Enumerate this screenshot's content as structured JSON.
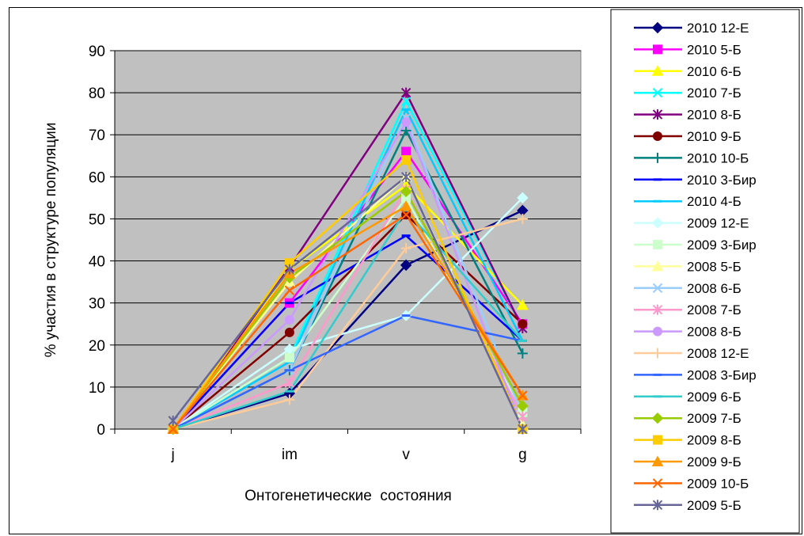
{
  "chart_data": {
    "type": "line",
    "categories": [
      "j",
      "im",
      "v",
      "g"
    ],
    "xlabel": "Онтогенетические  состояния",
    "ylabel": "% участия в структуре популяции",
    "ylim": [
      0,
      90
    ],
    "yticks": [
      0,
      10,
      20,
      30,
      40,
      50,
      60,
      70,
      80,
      90
    ],
    "grid": true,
    "legend": "right",
    "plot_background": "#c0c0c0",
    "series": [
      {
        "name": "2010 12-Е",
        "color": "#000080",
        "marker": "diamond",
        "values": [
          0,
          8.5,
          39,
          52
        ]
      },
      {
        "name": "2010 5-Б",
        "color": "#ff00ff",
        "marker": "square",
        "values": [
          0,
          30,
          66,
          25
        ]
      },
      {
        "name": "2010 6-Б",
        "color": "#ffff00",
        "marker": "triangle",
        "values": [
          0,
          38,
          58,
          29.5
        ]
      },
      {
        "name": "2010 7-Б",
        "color": "#00ffff",
        "marker": "x",
        "values": [
          0,
          17,
          78,
          24
        ]
      },
      {
        "name": "2010 8-Б",
        "color": "#800080",
        "marker": "star",
        "values": [
          0,
          38.5,
          80,
          24
        ]
      },
      {
        "name": "2010 9-Б",
        "color": "#800000",
        "marker": "circle",
        "values": [
          0,
          23,
          51,
          25
        ]
      },
      {
        "name": "2010 10-Б",
        "color": "#008080",
        "marker": "plus",
        "values": [
          0,
          14,
          71,
          18
        ]
      },
      {
        "name": "2010 3-Бир",
        "color": "#0000ff",
        "marker": "dash",
        "values": [
          0,
          30,
          46,
          21
        ]
      },
      {
        "name": "2010 4-Б",
        "color": "#00ccff",
        "marker": "dash",
        "values": [
          0,
          16,
          76,
          21
        ]
      },
      {
        "name": "2009 12-Е",
        "color": "#ccffff",
        "marker": "diamond",
        "values": [
          0,
          19,
          27,
          55
        ]
      },
      {
        "name": "2009 3-Бир",
        "color": "#ccffcc",
        "marker": "square",
        "values": [
          0,
          17,
          55,
          4
        ]
      },
      {
        "name": "2008 5-Б",
        "color": "#ffff99",
        "marker": "triangle",
        "values": [
          0,
          35,
          60,
          1
        ]
      },
      {
        "name": "2008 6-Б",
        "color": "#99ccff",
        "marker": "x",
        "values": [
          0,
          14,
          74,
          3
        ]
      },
      {
        "name": "2008 7-Б",
        "color": "#ff99cc",
        "marker": "star",
        "values": [
          0,
          11,
          57,
          3
        ]
      },
      {
        "name": "2008 8-Б",
        "color": "#cc99ff",
        "marker": "circle",
        "values": [
          0,
          26,
          73,
          0
        ]
      },
      {
        "name": "2008 12-Е",
        "color": "#ffcc99",
        "marker": "plus",
        "values": [
          0,
          7,
          43,
          50
        ]
      },
      {
        "name": "2008 3-Бир",
        "color": "#3366ff",
        "marker": "dash",
        "values": [
          0,
          14,
          27,
          21
        ]
      },
      {
        "name": "2009 6-Б",
        "color": "#33cccc",
        "marker": "dash",
        "values": [
          0,
          9,
          52,
          21
        ]
      },
      {
        "name": "2009 7-Б",
        "color": "#99cc00",
        "marker": "diamond",
        "values": [
          0,
          36,
          56.5,
          5.5
        ]
      },
      {
        "name": "2009 8-Б",
        "color": "#ffcc00",
        "marker": "square",
        "values": [
          0,
          39.5,
          64,
          0
        ]
      },
      {
        "name": "2009 9-Б",
        "color": "#ff9900",
        "marker": "triangle",
        "values": [
          0,
          37,
          53,
          8
        ]
      },
      {
        "name": "2009 10-Б",
        "color": "#ff6600",
        "marker": "x",
        "values": [
          0,
          33,
          51,
          8
        ]
      },
      {
        "name": "2009 5-Б",
        "color": "#666699",
        "marker": "star",
        "values": [
          2,
          38,
          60,
          0
        ]
      }
    ]
  }
}
